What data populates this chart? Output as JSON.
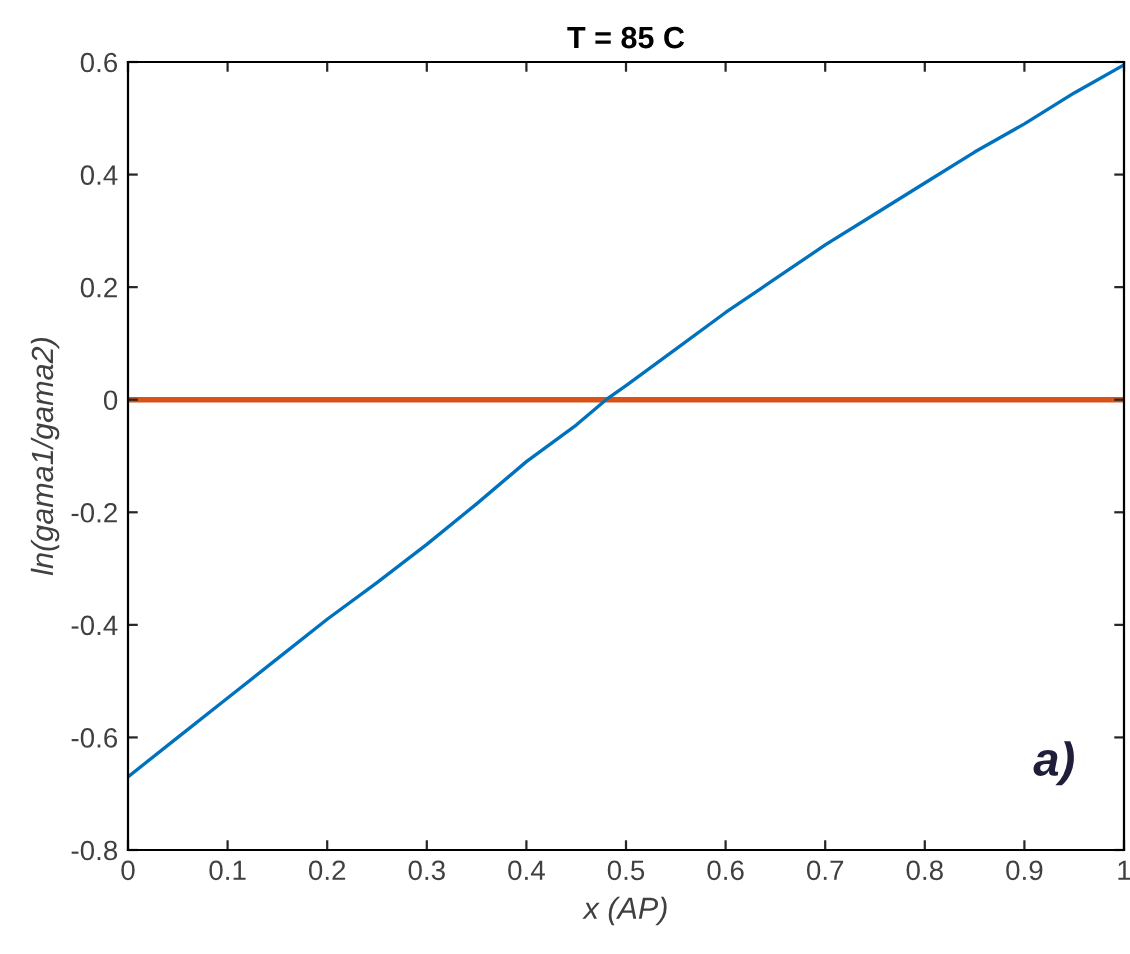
{
  "chart_data": {
    "type": "line",
    "title": "T = 85 C",
    "xlabel": "x (AP)",
    "ylabel": "ln(gama1/gama2)",
    "x": [
      0,
      0.05,
      0.1,
      0.15,
      0.2,
      0.25,
      0.3,
      0.35,
      0.4,
      0.45,
      0.48,
      0.5,
      0.55,
      0.6,
      0.65,
      0.7,
      0.75,
      0.8,
      0.85,
      0.9,
      0.95,
      1.0
    ],
    "series": [
      {
        "color": "#0072bd",
        "values": [
          -0.67,
          -0.6,
          -0.53,
          -0.46,
          -0.39,
          -0.325,
          -0.257,
          -0.185,
          -0.11,
          -0.045,
          0.0,
          0.025,
          0.09,
          0.155,
          0.215,
          0.275,
          0.33,
          0.385,
          0.44,
          0.49,
          0.545,
          0.595
        ]
      }
    ],
    "ref_lines": [
      {
        "axis": "y",
        "value": 0,
        "color": "#d95319"
      }
    ],
    "annotations": [
      "a)"
    ],
    "xlim": [
      0,
      1
    ],
    "ylim": [
      -0.8,
      0.6
    ],
    "xticks": [
      0,
      0.1,
      0.2,
      0.3,
      0.4,
      0.5,
      0.6,
      0.7,
      0.8,
      0.9,
      1
    ],
    "yticks": [
      -0.8,
      -0.6,
      -0.4,
      -0.2,
      0,
      0.2,
      0.4,
      0.6
    ],
    "grid": false,
    "legend": false
  }
}
